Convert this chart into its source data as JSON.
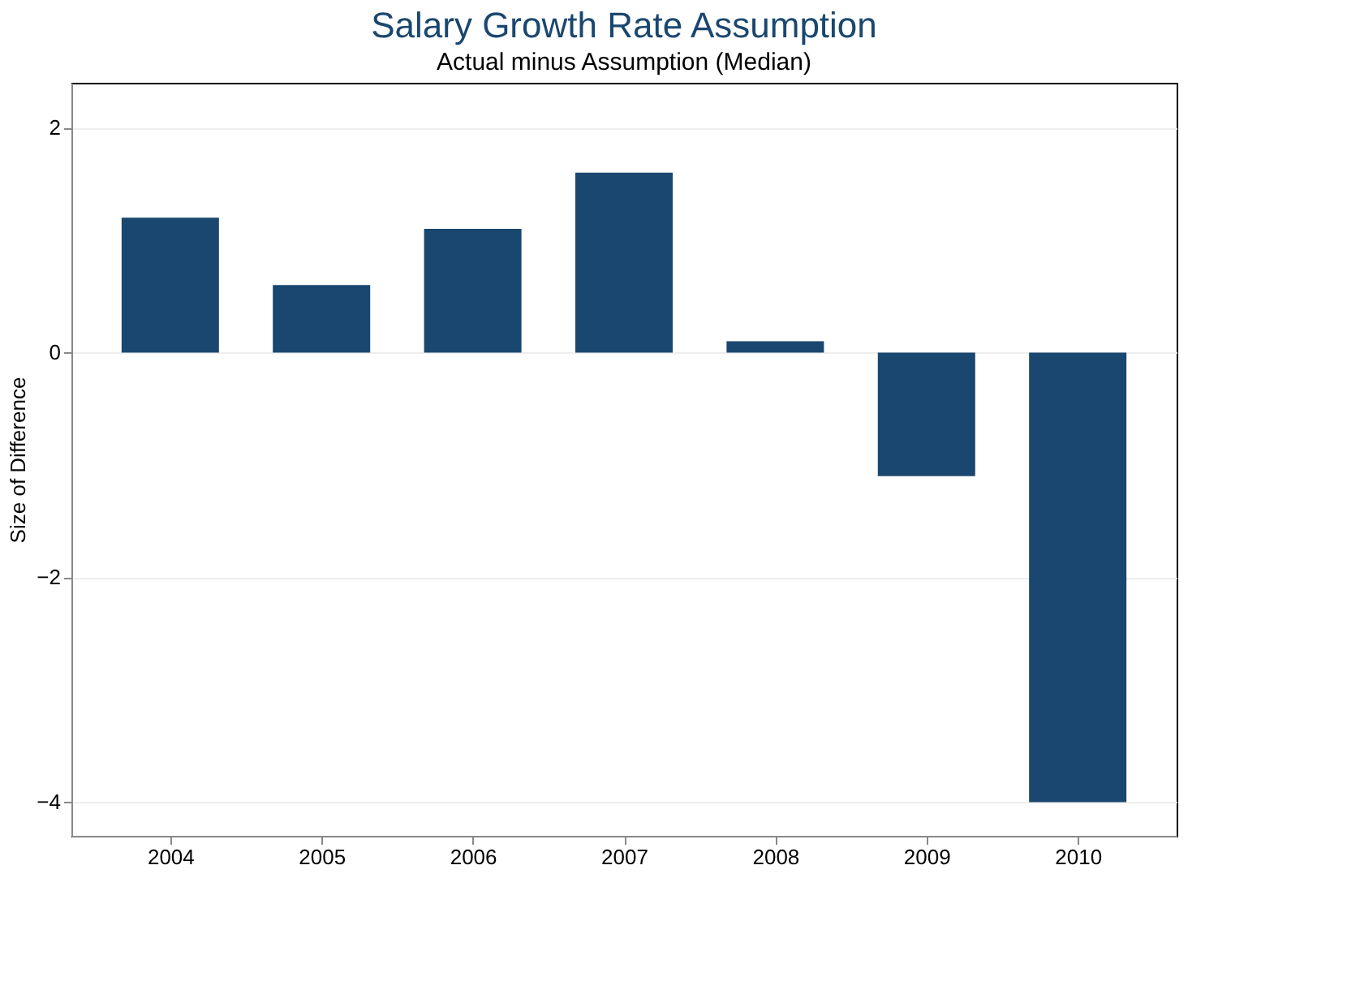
{
  "chart_data": {
    "type": "bar",
    "title": "Salary Growth Rate Assumption",
    "subtitle": "Actual minus Assumption (Median)",
    "ylabel": "Size of Difference",
    "categories": [
      "2004",
      "2005",
      "2006",
      "2007",
      "2008",
      "2009",
      "2010"
    ],
    "values": [
      1.2,
      0.6,
      1.1,
      1.6,
      0.1,
      -1.1,
      -4.0
    ],
    "color": "#1a476f",
    "ylim": [
      -4.3,
      2.4
    ],
    "yticks": [
      -4,
      -2,
      0,
      2
    ],
    "grid": "y"
  }
}
